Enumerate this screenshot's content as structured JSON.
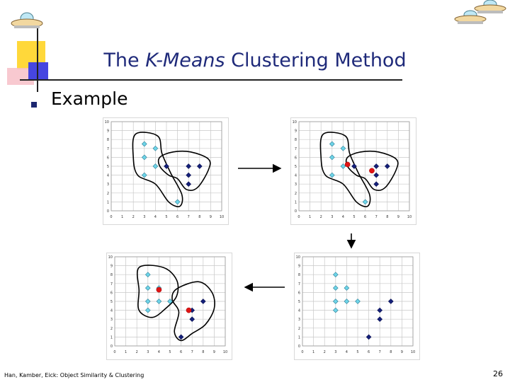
{
  "slide": {
    "title_pre": "The ",
    "title_em": "K-Means",
    "title_post": " Clustering Method",
    "bullet": "Example",
    "footer": "Han, Kamber, Eick: Object Similarity & Clustering",
    "page_number": "26"
  },
  "colors": {
    "cyan_point": "#6ed4e8",
    "navy_point": "#14207a",
    "centroid": "#e01414",
    "grid": "#c8c8c8",
    "title": "#1f2a7a"
  },
  "chart_data": [
    {
      "type": "scatter",
      "panel": "top-left",
      "xlim": [
        0,
        10
      ],
      "ylim": [
        0,
        10
      ],
      "x_ticks": [
        "0",
        "1",
        "2",
        "3",
        "4",
        "5",
        "6",
        "7",
        "8",
        "9",
        "10"
      ],
      "y_ticks": [
        "0",
        "1",
        "2",
        "3",
        "4",
        "5",
        "6",
        "7",
        "8",
        "9",
        "10"
      ],
      "series": [
        {
          "points": [
            [
              3,
              7.5
            ],
            [
              4,
              7
            ],
            [
              3,
              6
            ],
            [
              4,
              5
            ],
            [
              3,
              4
            ],
            [
              6,
              1
            ]
          ]
        },
        {
          "points": [
            [
              5,
              5
            ],
            [
              7,
              5
            ],
            [
              8,
              5
            ],
            [
              7,
              4
            ],
            [
              7,
              3
            ]
          ]
        }
      ],
      "centroids": [],
      "outlines": true
    },
    {
      "type": "scatter",
      "panel": "top-right",
      "xlim": [
        0,
        10
      ],
      "ylim": [
        0,
        10
      ],
      "x_ticks": [
        "0",
        "1",
        "2",
        "3",
        "4",
        "5",
        "6",
        "7",
        "8",
        "9",
        "10"
      ],
      "y_ticks": [
        "0",
        "1",
        "2",
        "3",
        "4",
        "5",
        "6",
        "7",
        "8",
        "9",
        "10"
      ],
      "series": [
        {
          "points": [
            [
              3,
              7.5
            ],
            [
              4,
              7
            ],
            [
              3,
              6
            ],
            [
              4,
              5
            ],
            [
              3,
              4
            ],
            [
              6,
              1
            ]
          ]
        },
        {
          "points": [
            [
              5,
              5
            ],
            [
              7,
              5
            ],
            [
              8,
              5
            ],
            [
              7,
              4
            ],
            [
              7,
              3
            ]
          ]
        }
      ],
      "centroids": [
        [
          4.4,
          5.2
        ],
        [
          6.6,
          4.5
        ]
      ],
      "outlines": true
    },
    {
      "type": "scatter",
      "panel": "bottom-right",
      "xlim": [
        0,
        10
      ],
      "ylim": [
        0,
        10
      ],
      "x_ticks": [
        "0",
        "1",
        "2",
        "3",
        "4",
        "5",
        "6",
        "7",
        "8",
        "9",
        "10"
      ],
      "y_ticks": [
        "0",
        "1",
        "2",
        "3",
        "4",
        "5",
        "6",
        "7",
        "8",
        "9",
        "10"
      ],
      "series": [
        {
          "points": [
            [
              3,
              8
            ],
            [
              3,
              6.5
            ],
            [
              4,
              6.5
            ],
            [
              3,
              5
            ],
            [
              4,
              5
            ],
            [
              5,
              5
            ],
            [
              3,
              4
            ]
          ]
        },
        {
          "points": [
            [
              8,
              5
            ],
            [
              7,
              4
            ],
            [
              7,
              3
            ],
            [
              6,
              1
            ]
          ]
        }
      ],
      "centroids": [],
      "outlines": false
    },
    {
      "type": "scatter",
      "panel": "bottom-left",
      "xlim": [
        0,
        10
      ],
      "ylim": [
        0,
        10
      ],
      "x_ticks": [
        "0",
        "1",
        "2",
        "3",
        "4",
        "5",
        "6",
        "7",
        "8",
        "9",
        "10"
      ],
      "y_ticks": [
        "0",
        "1",
        "2",
        "3",
        "4",
        "5",
        "6",
        "7",
        "8",
        "9",
        "10"
      ],
      "series": [
        {
          "points": [
            [
              3,
              8
            ],
            [
              3,
              6.5
            ],
            [
              4,
              6.5
            ],
            [
              3,
              5
            ],
            [
              4,
              5
            ],
            [
              5,
              5
            ],
            [
              3,
              4
            ]
          ]
        },
        {
          "points": [
            [
              8,
              5
            ],
            [
              7,
              4
            ],
            [
              7,
              3
            ],
            [
              6,
              1
            ]
          ]
        }
      ],
      "centroids": [
        [
          4,
          6.3
        ],
        [
          6.7,
          4
        ]
      ],
      "outlines": true
    }
  ]
}
